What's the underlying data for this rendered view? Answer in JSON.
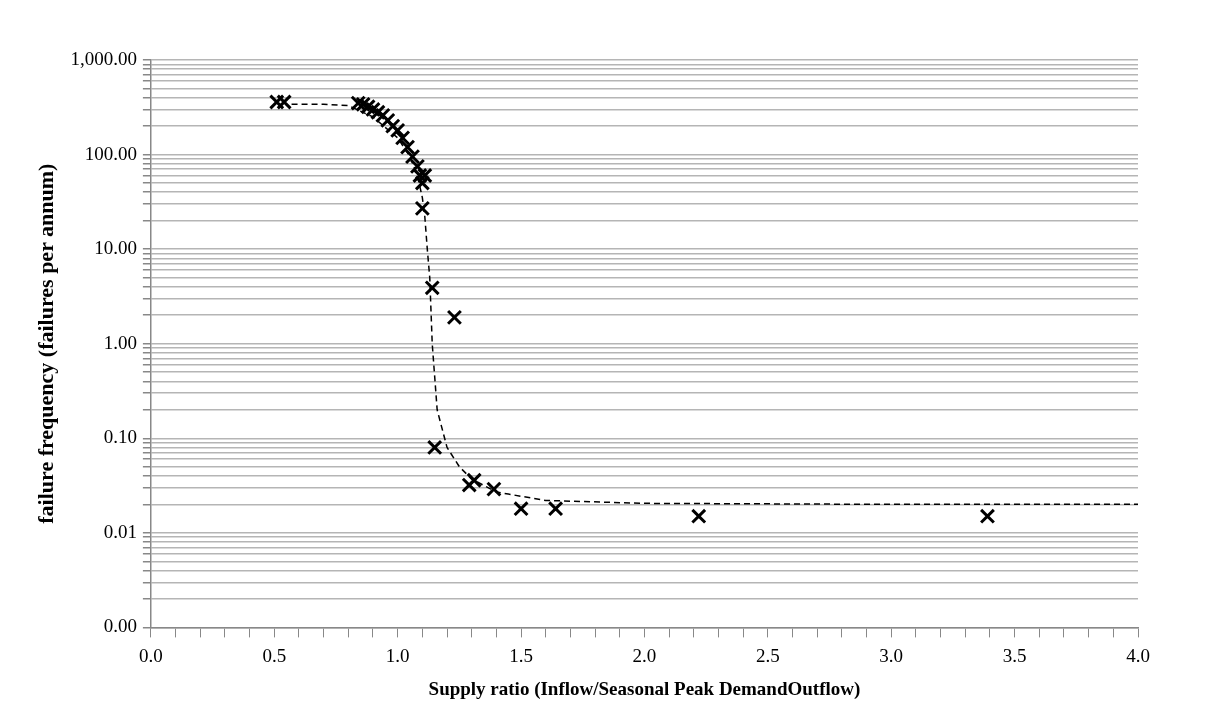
{
  "chart_data": {
    "type": "scatter",
    "xlabel": "Supply ratio (Inflow/Seasonal Peak DemandOutflow)",
    "ylabel": "failure frequency (failures per annum)",
    "log": "y",
    "grid": "y",
    "legend": false,
    "marker": "cross",
    "xlim": [
      0,
      4
    ],
    "xticks": [
      {
        "value": 0,
        "label": "0.0"
      },
      {
        "value": 0.1,
        "label": null
      },
      {
        "value": 0.2,
        "label": null
      },
      {
        "value": 0.3,
        "label": null
      },
      {
        "value": 0.4,
        "label": null
      },
      {
        "value": 0.5,
        "label": "0.5"
      },
      {
        "value": 0.6,
        "label": null
      },
      {
        "value": 0.7,
        "label": null
      },
      {
        "value": 0.8,
        "label": null
      },
      {
        "value": 0.9,
        "label": null
      },
      {
        "value": 1,
        "label": "1.0"
      },
      {
        "value": 1.1,
        "label": null
      },
      {
        "value": 1.2,
        "label": null
      },
      {
        "value": 1.3,
        "label": null
      },
      {
        "value": 1.4,
        "label": null
      },
      {
        "value": 1.5,
        "label": "1.5"
      },
      {
        "value": 1.6,
        "label": null
      },
      {
        "value": 1.7,
        "label": null
      },
      {
        "value": 1.8,
        "label": null
      },
      {
        "value": 1.9,
        "label": null
      },
      {
        "value": 2,
        "label": "2.0"
      },
      {
        "value": 2.1,
        "label": null
      },
      {
        "value": 2.2,
        "label": null
      },
      {
        "value": 2.3,
        "label": null
      },
      {
        "value": 2.4,
        "label": null
      },
      {
        "value": 2.5,
        "label": "2.5"
      },
      {
        "value": 2.6,
        "label": null
      },
      {
        "value": 2.7,
        "label": null
      },
      {
        "value": 2.8,
        "label": null
      },
      {
        "value": 2.9,
        "label": null
      },
      {
        "value": 3,
        "label": "3.0"
      },
      {
        "value": 3.1,
        "label": null
      },
      {
        "value": 3.2,
        "label": null
      },
      {
        "value": 3.3,
        "label": null
      },
      {
        "value": 3.4,
        "label": null
      },
      {
        "value": 3.5,
        "label": "3.5"
      },
      {
        "value": 3.6,
        "label": null
      },
      {
        "value": 3.7,
        "label": null
      },
      {
        "value": 3.8,
        "label": null
      },
      {
        "value": 3.9,
        "label": null
      },
      {
        "value": 4,
        "label": "4.0"
      }
    ],
    "ylim": [
      0.001,
      1000
    ],
    "yticks": [
      {
        "value": 0.001,
        "label": "0.00"
      },
      {
        "value": 0.002,
        "label": null
      },
      {
        "value": 0.003,
        "label": null
      },
      {
        "value": 0.004,
        "label": null
      },
      {
        "value": 0.005,
        "label": null
      },
      {
        "value": 0.006,
        "label": null
      },
      {
        "value": 0.007,
        "label": null
      },
      {
        "value": 0.008,
        "label": null
      },
      {
        "value": 0.009,
        "label": null
      },
      {
        "value": 0.01,
        "label": "0.01"
      },
      {
        "value": 0.02,
        "label": null
      },
      {
        "value": 0.03,
        "label": null
      },
      {
        "value": 0.04,
        "label": null
      },
      {
        "value": 0.05,
        "label": null
      },
      {
        "value": 0.06,
        "label": null
      },
      {
        "value": 0.07,
        "label": null
      },
      {
        "value": 0.08,
        "label": null
      },
      {
        "value": 0.09,
        "label": null
      },
      {
        "value": 0.1,
        "label": "0.10"
      },
      {
        "value": 0.2,
        "label": null
      },
      {
        "value": 0.3,
        "label": null
      },
      {
        "value": 0.4,
        "label": null
      },
      {
        "value": 0.5,
        "label": null
      },
      {
        "value": 0.6,
        "label": null
      },
      {
        "value": 0.7,
        "label": null
      },
      {
        "value": 0.8,
        "label": null
      },
      {
        "value": 0.9,
        "label": null
      },
      {
        "value": 1,
        "label": "1.00"
      },
      {
        "value": 2,
        "label": null
      },
      {
        "value": 3,
        "label": null
      },
      {
        "value": 4,
        "label": null
      },
      {
        "value": 5,
        "label": null
      },
      {
        "value": 6,
        "label": null
      },
      {
        "value": 7,
        "label": null
      },
      {
        "value": 8,
        "label": null
      },
      {
        "value": 9,
        "label": null
      },
      {
        "value": 10,
        "label": "10.00"
      },
      {
        "value": 20,
        "label": null
      },
      {
        "value": 30,
        "label": null
      },
      {
        "value": 40,
        "label": null
      },
      {
        "value": 50,
        "label": null
      },
      {
        "value": 60,
        "label": null
      },
      {
        "value": 70,
        "label": null
      },
      {
        "value": 80,
        "label": null
      },
      {
        "value": 90,
        "label": null
      },
      {
        "value": 100,
        "label": "100.00"
      },
      {
        "value": 200,
        "label": null
      },
      {
        "value": 300,
        "label": null
      },
      {
        "value": 400,
        "label": null
      },
      {
        "value": 500,
        "label": null
      },
      {
        "value": 600,
        "label": null
      },
      {
        "value": 700,
        "label": null
      },
      {
        "value": 800,
        "label": null
      },
      {
        "value": 900,
        "label": null
      },
      {
        "value": 1000,
        "label": "1,000.00"
      }
    ],
    "series": [
      {
        "type": "scatter",
        "color": "#000000",
        "x": [
          0.51,
          0.54,
          0.84,
          0.86,
          0.88,
          0.9,
          0.92,
          0.94,
          0.96,
          0.98,
          1.0,
          1.02,
          1.04,
          1.06,
          1.08,
          1.09,
          1.1,
          1.11,
          1.1,
          1.14,
          1.23,
          1.15,
          1.29,
          1.31,
          1.39,
          1.5,
          1.64,
          2.22,
          3.39
        ],
        "values": [
          360,
          360,
          350,
          340,
          320,
          300,
          280,
          260,
          230,
          200,
          180,
          150,
          120,
          95,
          75,
          60,
          50,
          60,
          27,
          3.9,
          1.9,
          0.08,
          0.032,
          0.036,
          0.029,
          0.018,
          0.018,
          0.015,
          0.015
        ]
      },
      {
        "type": "line",
        "color": "#000000",
        "line_style": "dashed",
        "marker": "none",
        "x": [
          0.57,
          0.7,
          0.8,
          0.9,
          1.0,
          1.05,
          1.08,
          1.1,
          1.11,
          1.12,
          1.13,
          1.14,
          1.16,
          1.2,
          1.25,
          1.3,
          1.4,
          1.6,
          2.0,
          3.0,
          4.0
        ],
        "values": [
          340,
          340,
          330,
          250,
          150,
          95,
          60,
          35,
          22,
          10,
          5,
          1,
          0.2,
          0.08,
          0.05,
          0.037,
          0.027,
          0.022,
          0.0205,
          0.02,
          0.02
        ]
      }
    ]
  }
}
